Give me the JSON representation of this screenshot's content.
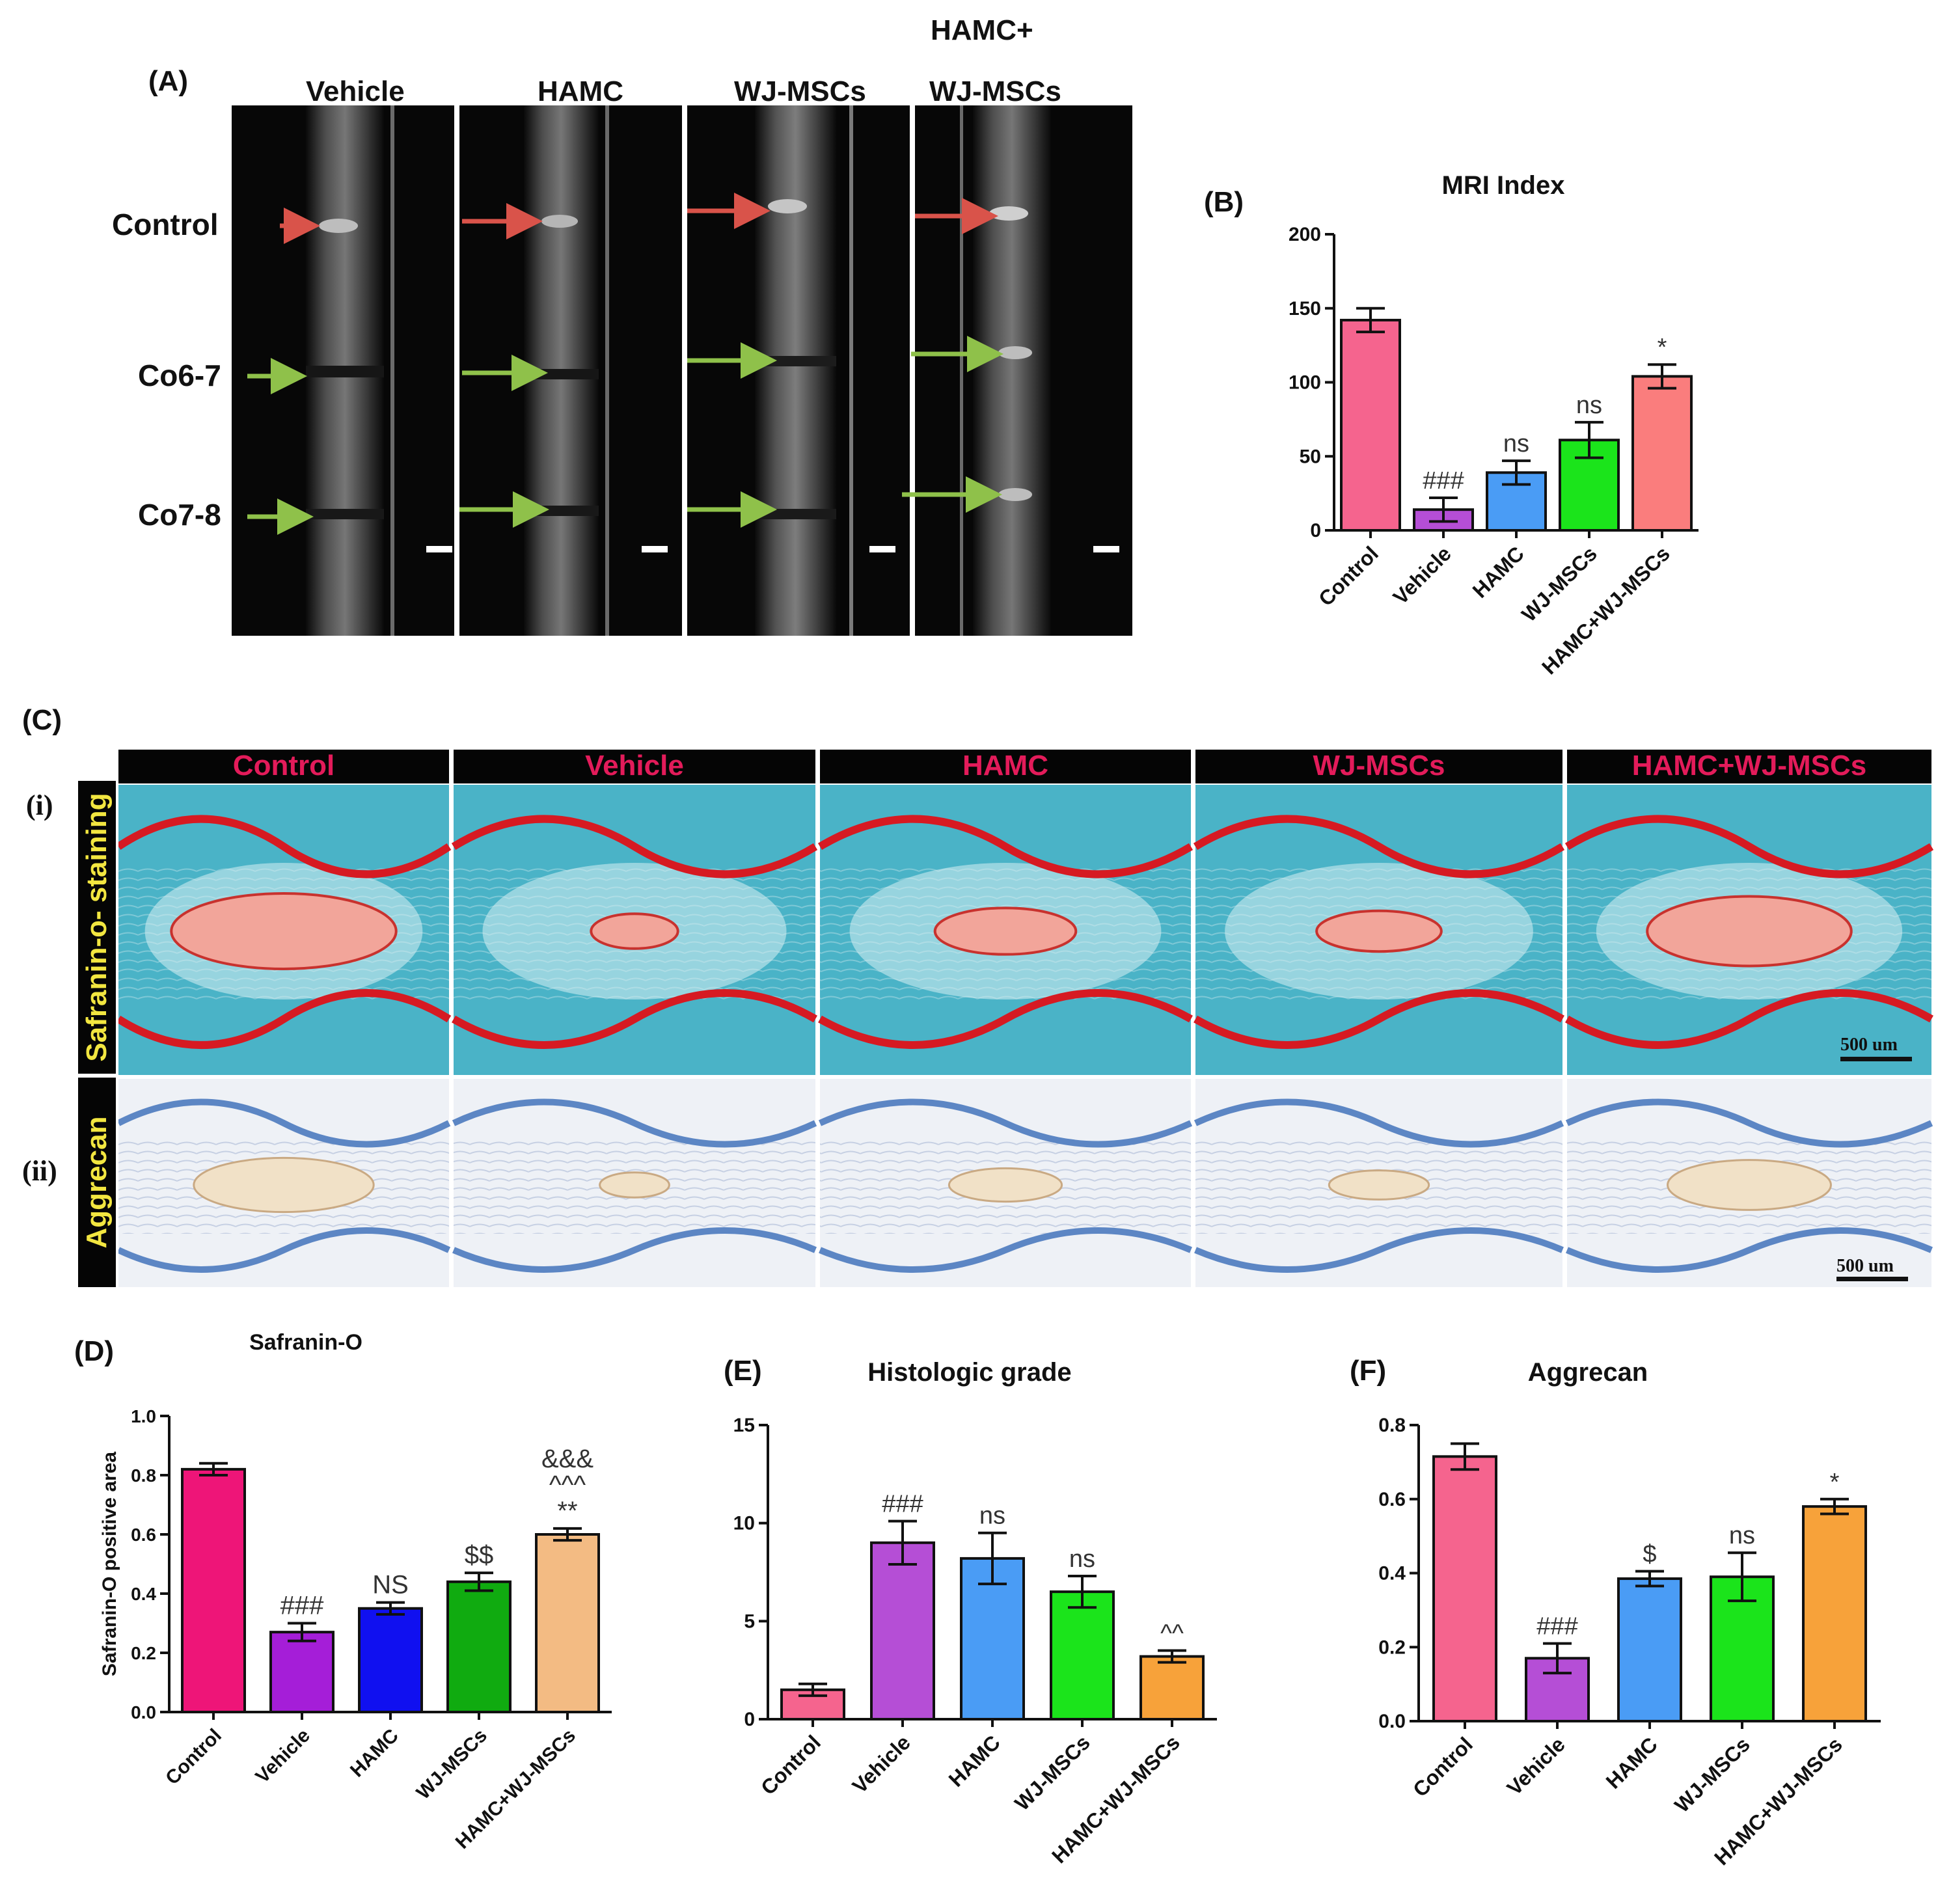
{
  "panel_labels": {
    "A": "(A)",
    "B": "(B)",
    "C": "(C)",
    "D": "(D)",
    "E": "(E)",
    "F": "(F)",
    "i": "(i)",
    "ii": "(ii)"
  },
  "mri": {
    "top_label": "HAMC+",
    "columns": [
      "Vehicle",
      "HAMC",
      "WJ-MSCs",
      "WJ-MSCs"
    ],
    "rows": [
      "Control",
      "Co6-7",
      "Co7-8"
    ],
    "arrow_colors": {
      "control": "#d9534a",
      "disc": "#8fc14a"
    }
  },
  "histology": {
    "columns": [
      "Control",
      "Vehicle",
      "HAMC",
      "WJ-MSCs",
      "HAMC+WJ-MSCs"
    ],
    "row_labels": [
      "Safranin-o- staining",
      "Aggrecan"
    ],
    "scale_bar": "500 um"
  },
  "chart_data": [
    {
      "id": "B",
      "type": "bar",
      "title": "MRI Index",
      "categories": [
        "Control",
        "Vehicle",
        "HAMC",
        "WJ-MSCs",
        "HAMC+WJ-MSCs"
      ],
      "values": [
        142,
        14,
        39,
        61,
        104
      ],
      "errors": [
        8,
        8,
        8,
        12,
        8
      ],
      "annotations": [
        "",
        "###",
        "ns",
        "ns",
        "*"
      ],
      "colors": [
        "#f5648e",
        "#b54ed6",
        "#4a9cf5",
        "#1be41b",
        "#fa7d7d"
      ],
      "ylim": [
        0,
        200
      ],
      "yticks": [
        0,
        50,
        100,
        150,
        200
      ],
      "ylabel": ""
    },
    {
      "id": "D",
      "type": "bar",
      "title": "Safranin-O",
      "categories": [
        "Control",
        "Vehicle",
        "HAMC",
        "WJ-MSCs",
        "HAMC+WJ-MSCs"
      ],
      "values": [
        0.82,
        0.27,
        0.35,
        0.44,
        0.6
      ],
      "errors": [
        0.02,
        0.03,
        0.02,
        0.03,
        0.02
      ],
      "annotations": [
        "",
        "###",
        "NS",
        "$$",
        "&&&\n^^^\n**"
      ],
      "colors": [
        "#ee1578",
        "#a51ed8",
        "#1010f0",
        "#10ab10",
        "#f3bb83"
      ],
      "ylim": [
        0,
        1.0
      ],
      "yticks": [
        0.0,
        0.2,
        0.4,
        0.6,
        0.8,
        1.0
      ],
      "ylabel": "Safranin-O positive area"
    },
    {
      "id": "E",
      "type": "bar",
      "title": "Histologic grade",
      "categories": [
        "Control",
        "Vehicle",
        "HAMC",
        "WJ-MSCs",
        "HAMC+WJ-MSCs"
      ],
      "values": [
        1.5,
        9.0,
        8.2,
        6.5,
        3.2
      ],
      "errors": [
        0.3,
        1.1,
        1.3,
        0.8,
        0.3
      ],
      "annotations": [
        "",
        "###",
        "ns",
        "ns",
        "^^"
      ],
      "colors": [
        "#f5648e",
        "#b54ed6",
        "#4a9cf5",
        "#1be41b",
        "#f7a23a"
      ],
      "ylim": [
        0,
        15
      ],
      "yticks": [
        0,
        5,
        10,
        15
      ],
      "ylabel": ""
    },
    {
      "id": "F",
      "type": "bar",
      "title": "Aggrecan",
      "categories": [
        "Control",
        "Vehicle",
        "HAMC",
        "WJ-MSCs",
        "HAMC+WJ-MSCs"
      ],
      "values": [
        0.715,
        0.17,
        0.385,
        0.39,
        0.58
      ],
      "errors": [
        0.035,
        0.04,
        0.02,
        0.065,
        0.02
      ],
      "annotations": [
        "",
        "###",
        "$",
        "ns",
        "*"
      ],
      "colors": [
        "#f5648e",
        "#b54ed6",
        "#4a9cf5",
        "#1be41b",
        "#f7a23a"
      ],
      "ylim": [
        0,
        0.8
      ],
      "yticks": [
        0.0,
        0.2,
        0.4,
        0.6,
        0.8
      ],
      "ylabel": ""
    }
  ]
}
